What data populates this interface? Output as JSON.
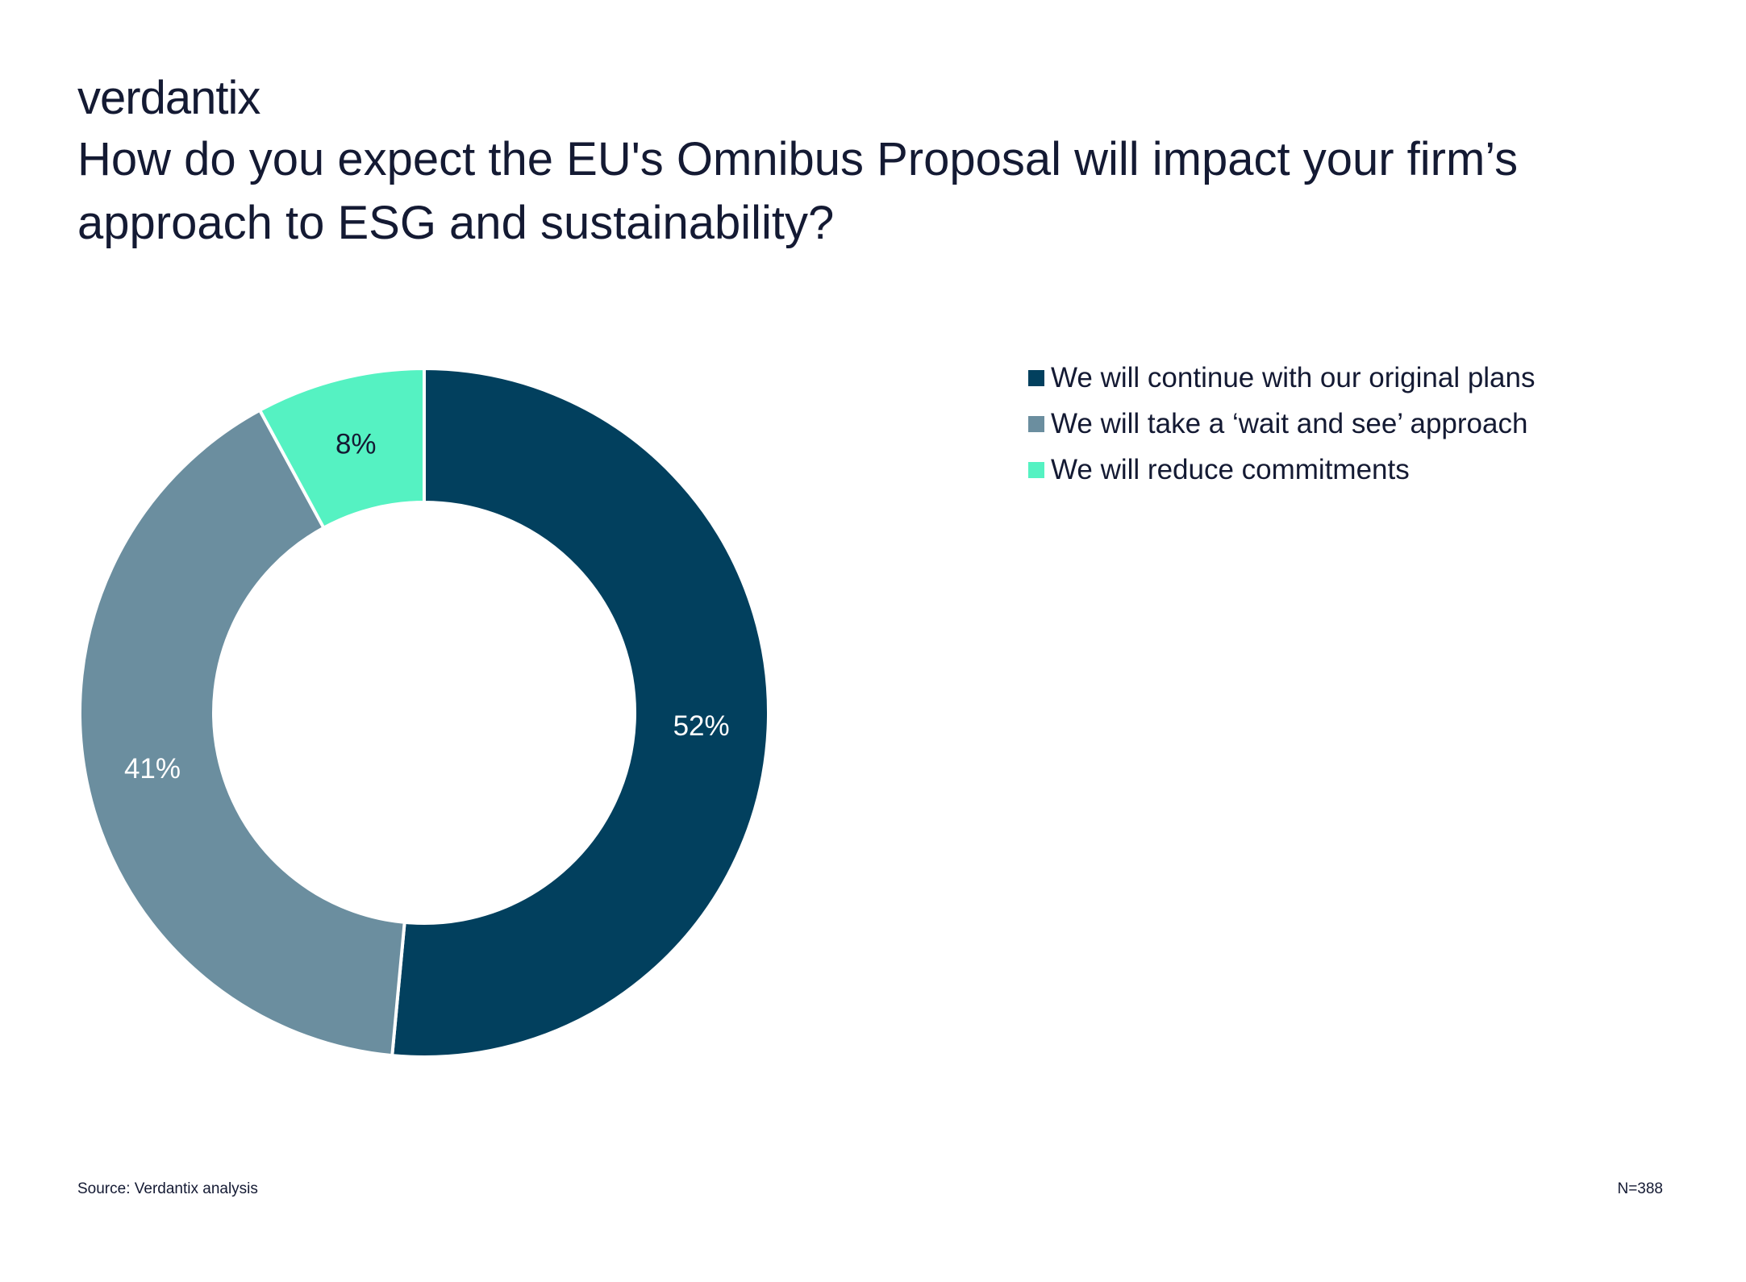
{
  "brand": {
    "logo_text": "verdantix"
  },
  "chart_data": {
    "type": "pie",
    "variant": "donut",
    "title": "How do you expect the EU's Omnibus Proposal will impact your firm’s approach to ESG and sustainability?",
    "categories": [
      "We will continue with our original plans",
      "We will take a ‘wait and see’ approach",
      "We will reduce commitments"
    ],
    "values": [
      52,
      41,
      8
    ],
    "labels": [
      "52%",
      "41%",
      "8%"
    ],
    "colors": [
      "#02405e",
      "#6b8e9f",
      "#55f2c2"
    ],
    "legend_position": "top-right"
  },
  "footer": {
    "source": "Source: Verdantix analysis",
    "sample_size": "N=388"
  }
}
